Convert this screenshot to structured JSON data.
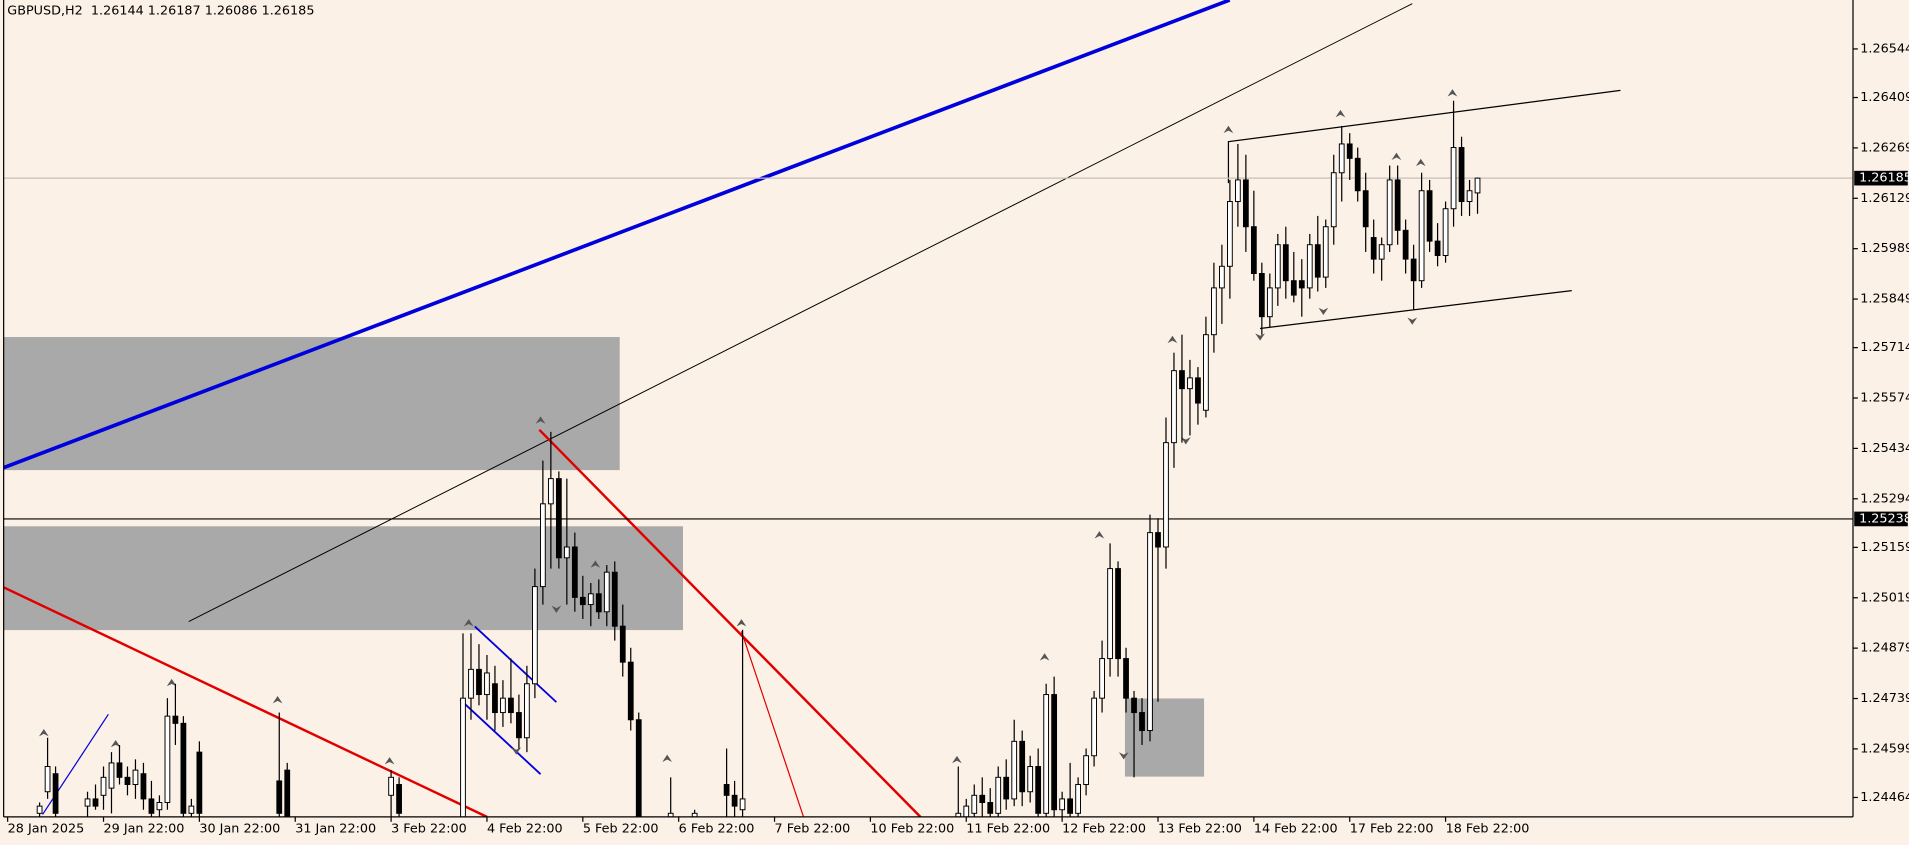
{
  "chart_data": {
    "type": "candlestick",
    "title": "GBPUSD,H2  1.26144 1.26187 1.26086 1.26185",
    "background": "#fcf1e6",
    "bull_color": "#ffffff",
    "bear_color": "#000000",
    "ylim": [
      1.2441,
      1.2668
    ],
    "yticks": [
      1.26544,
      1.26409,
      1.26269,
      1.26129,
      1.25989,
      1.25849,
      1.25714,
      1.25574,
      1.25434,
      1.25294,
      1.25159,
      1.25019,
      1.24879,
      1.24739,
      1.24599,
      1.24464
    ],
    "xlim": [
      -0.5,
      231
    ],
    "xticks": [
      {
        "value": 0,
        "label": "28 Jan 2025"
      },
      {
        "value": 12,
        "label": "29 Jan 22:00"
      },
      {
        "value": 24,
        "label": "30 Jan 22:00"
      },
      {
        "value": 36,
        "label": "31 Jan 22:00"
      },
      {
        "value": 48,
        "label": "3 Feb 22:00"
      },
      {
        "value": 60,
        "label": "4 Feb 22:00"
      },
      {
        "value": 72,
        "label": "5 Feb 22:00"
      },
      {
        "value": 84,
        "label": "6 Feb 22:00"
      },
      {
        "value": 96,
        "label": "7 Feb 22:00"
      },
      {
        "value": 108,
        "label": "10 Feb 22:00"
      },
      {
        "value": 120,
        "label": "11 Feb 22:00"
      },
      {
        "value": 132,
        "label": "12 Feb 22:00"
      },
      {
        "value": 144,
        "label": "13 Feb 22:00"
      },
      {
        "value": 156,
        "label": "14 Feb 22:00"
      },
      {
        "value": 168,
        "label": "17 Feb 22:00"
      },
      {
        "value": 180,
        "label": "18 Feb 22:00"
      }
    ],
    "price_lines": [
      {
        "value": 1.26185,
        "color": "#c8c0b8"
      },
      {
        "value": 1.25238,
        "color": "#000000"
      }
    ],
    "x": [
      4,
      5,
      6,
      10,
      11,
      12,
      13,
      14,
      15,
      16,
      17,
      18,
      19,
      20,
      21,
      22,
      23,
      24,
      34,
      35,
      48,
      49,
      57,
      58,
      59,
      60,
      61,
      62,
      63,
      64,
      65,
      66,
      67,
      68,
      69,
      70,
      71,
      72,
      73,
      74,
      75,
      76,
      77,
      78,
      79,
      83,
      86,
      90,
      91,
      92,
      119,
      120,
      121,
      122,
      123,
      124,
      125,
      126,
      127,
      128,
      129,
      130,
      131,
      132,
      133,
      134,
      135,
      136,
      137,
      138,
      139,
      140,
      141,
      142,
      143,
      144,
      145,
      146,
      147,
      148,
      149,
      150,
      151,
      152,
      153,
      154,
      155,
      156,
      157,
      158,
      159,
      160,
      161,
      162,
      163,
      164,
      165,
      166,
      167,
      168,
      169,
      170,
      171,
      172,
      173,
      174,
      175,
      176,
      177,
      178,
      179,
      180,
      181,
      182,
      183,
      184
    ],
    "open": [
      1.2442,
      1.2448,
      1.2453,
      1.2444,
      1.2446,
      1.2447,
      1.2449,
      1.2456,
      1.2452,
      1.245,
      1.2453,
      1.2446,
      1.2443,
      1.2445,
      1.2469,
      1.2467,
      1.2442,
      1.2459,
      1.2451,
      1.2454,
      1.2447,
      1.245,
      1.2441,
      1.2474,
      1.2482,
      1.2475,
      1.2478,
      1.247,
      1.2474,
      1.247,
      1.2463,
      1.2478,
      1.2505,
      1.2528,
      1.2535,
      1.2513,
      1.2516,
      1.2502,
      1.25,
      1.2503,
      1.2498,
      1.2509,
      1.2494,
      1.2484,
      1.2468,
      1.2441,
      1.2441,
      1.245,
      1.2447,
      1.2443,
      1.2441,
      1.2441,
      1.2442,
      1.2447,
      1.2445,
      1.2442,
      1.2452,
      1.2446,
      1.2462,
      1.2448,
      1.2455,
      1.2442,
      1.2475,
      1.2443,
      1.2446,
      1.2442,
      1.245,
      1.2458,
      1.2474,
      1.2485,
      1.251,
      1.2485,
      1.2474,
      1.247,
      1.2465,
      1.252,
      1.2516,
      1.2545,
      1.2565,
      1.256,
      1.2563,
      1.2554,
      1.2575,
      1.2588,
      1.2594,
      1.2612,
      1.2618,
      1.2605,
      1.2592,
      1.258,
      1.2588,
      1.26,
      1.259,
      1.259,
      1.2588,
      1.26,
      1.2591,
      1.2605,
      1.262,
      1.2628,
      1.2624,
      1.2615,
      1.2602,
      1.2596,
      1.26,
      1.2618,
      1.2604,
      1.2596,
      1.259,
      1.2615,
      1.2601,
      1.2597,
      1.261,
      1.2627,
      1.2612,
      1.26144
    ],
    "high": [
      1.2445,
      1.2463,
      1.2455,
      1.2448,
      1.245,
      1.2455,
      1.2459,
      1.2461,
      1.2455,
      1.2457,
      1.2456,
      1.2451,
      1.2447,
      1.2474,
      1.2478,
      1.2469,
      1.2446,
      1.2462,
      1.247,
      1.2456,
      1.2454,
      1.2452,
      1.2492,
      1.2492,
      1.2489,
      1.2486,
      1.2483,
      1.2479,
      1.2485,
      1.2475,
      1.2483,
      1.251,
      1.254,
      1.2548,
      1.2537,
      1.2535,
      1.252,
      1.2508,
      1.2506,
      1.2507,
      1.2511,
      1.2512,
      1.25,
      1.2488,
      1.247,
      1.2452,
      1.2443,
      1.246,
      1.2451,
      1.2493,
      1.2455,
      1.2446,
      1.245,
      1.2452,
      1.2449,
      1.2455,
      1.2457,
      1.2468,
      1.2465,
      1.2458,
      1.246,
      1.2478,
      1.248,
      1.2448,
      1.2456,
      1.2452,
      1.246,
      1.2476,
      1.249,
      1.2517,
      1.2512,
      1.2488,
      1.2476,
      1.2474,
      1.2525,
      1.2524,
      1.2552,
      1.257,
      1.2575,
      1.2568,
      1.2566,
      1.258,
      1.2595,
      1.26,
      1.2618,
      1.2628,
      1.2625,
      1.2615,
      1.2595,
      1.2592,
      1.2603,
      1.2605,
      1.2598,
      1.2596,
      1.2603,
      1.2608,
      1.2607,
      1.2625,
      1.2633,
      1.2631,
      1.2627,
      1.262,
      1.2607,
      1.2602,
      1.2622,
      1.2622,
      1.2607,
      1.26,
      1.262,
      1.2618,
      1.2606,
      1.2612,
      1.264,
      1.263,
      1.2618,
      1.26187
    ],
    "low": [
      1.244,
      1.2446,
      1.244,
      1.2441,
      1.2443,
      1.2443,
      1.2442,
      1.245,
      1.2447,
      1.2446,
      1.2443,
      1.244,
      1.2441,
      1.2443,
      1.2461,
      1.244,
      1.244,
      1.244,
      1.244,
      1.244,
      1.244,
      1.2441,
      1.244,
      1.2468,
      1.2472,
      1.2468,
      1.2465,
      1.2466,
      1.2467,
      1.246,
      1.2459,
      1.2474,
      1.25,
      1.251,
      1.251,
      1.25,
      1.2498,
      1.2496,
      1.2494,
      1.2496,
      1.2494,
      1.249,
      1.248,
      1.2465,
      1.244,
      1.244,
      1.244,
      1.244,
      1.2441,
      1.244,
      1.244,
      1.244,
      1.244,
      1.2441,
      1.244,
      1.244,
      1.2443,
      1.2444,
      1.2444,
      1.2445,
      1.244,
      1.244,
      1.2441,
      1.244,
      1.244,
      1.244,
      1.2447,
      1.2455,
      1.247,
      1.248,
      1.248,
      1.247,
      1.2452,
      1.2461,
      1.2462,
      1.2473,
      1.251,
      1.2538,
      1.2545,
      1.2547,
      1.255,
      1.2552,
      1.257,
      1.2578,
      1.2585,
      1.2605,
      1.2598,
      1.259,
      1.2575,
      1.2577,
      1.2583,
      1.2585,
      1.2584,
      1.258,
      1.2585,
      1.2587,
      1.2588,
      1.26,
      1.2612,
      1.2618,
      1.2612,
      1.2598,
      1.2592,
      1.259,
      1.2598,
      1.26,
      1.2592,
      1.2582,
      1.2588,
      1.2598,
      1.2594,
      1.2595,
      1.2605,
      1.2608,
      1.2608,
      1.26086
    ],
    "close": [
      1.2444,
      1.2455,
      1.2442,
      1.2446,
      1.2444,
      1.2452,
      1.2456,
      1.2452,
      1.245,
      1.2454,
      1.2446,
      1.2442,
      1.2445,
      1.2469,
      1.2467,
      1.2442,
      1.2444,
      1.2442,
      1.2442,
      1.2441,
      1.2452,
      1.2442,
      1.2474,
      1.2482,
      1.2475,
      1.2481,
      1.247,
      1.2474,
      1.247,
      1.2463,
      1.2478,
      1.2505,
      1.2528,
      1.2535,
      1.2513,
      1.2516,
      1.2502,
      1.25,
      1.2503,
      1.2498,
      1.2509,
      1.2494,
      1.2484,
      1.2468,
      1.2441,
      1.2442,
      1.2442,
      1.2447,
      1.2444,
      1.2446,
      1.2442,
      1.2444,
      1.2447,
      1.2445,
      1.2442,
      1.2452,
      1.2446,
      1.2462,
      1.2448,
      1.2455,
      1.2442,
      1.2475,
      1.2443,
      1.2446,
      1.2442,
      1.245,
      1.2458,
      1.2474,
      1.2485,
      1.251,
      1.2485,
      1.2474,
      1.247,
      1.2465,
      1.252,
      1.2516,
      1.2545,
      1.2565,
      1.256,
      1.2563,
      1.2556,
      1.2575,
      1.2588,
      1.2594,
      1.2612,
      1.2618,
      1.2605,
      1.2592,
      1.258,
      1.2588,
      1.26,
      1.259,
      1.2586,
      1.2588,
      1.26,
      1.2591,
      1.2605,
      1.262,
      1.2628,
      1.2624,
      1.2615,
      1.2605,
      1.2596,
      1.26,
      1.2618,
      1.2604,
      1.2596,
      1.259,
      1.2615,
      1.2601,
      1.2597,
      1.261,
      1.2627,
      1.2612,
      1.2615,
      1.26185
    ]
  }
}
